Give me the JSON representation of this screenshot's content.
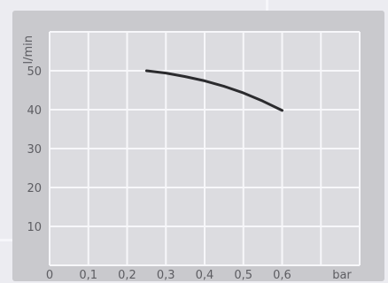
{
  "chart_data": {
    "type": "line",
    "title": "",
    "xlabel": "bar",
    "ylabel": "l/min",
    "xlim": [
      0,
      0.8
    ],
    "ylim": [
      0,
      60
    ],
    "x_ticks": [
      "0",
      "0,1",
      "0,2",
      "0,3",
      "0,4",
      "0,5",
      "0,6"
    ],
    "y_ticks": [
      "10",
      "20",
      "30",
      "40",
      "50"
    ],
    "grid": true,
    "series": [
      {
        "name": "",
        "color": "#2b2b2e",
        "x": [
          0.25,
          0.3,
          0.35,
          0.4,
          0.45,
          0.5,
          0.55,
          0.6
        ],
        "y": [
          50.0,
          49.4,
          48.5,
          47.4,
          46.0,
          44.3,
          42.2,
          39.8
        ]
      }
    ]
  },
  "colors": {
    "panel": "#c9c9cd",
    "plot_background": "#dcdce0",
    "grid": "#f7f7fa",
    "text": "#5d5d62",
    "line": "#2b2b2e"
  }
}
